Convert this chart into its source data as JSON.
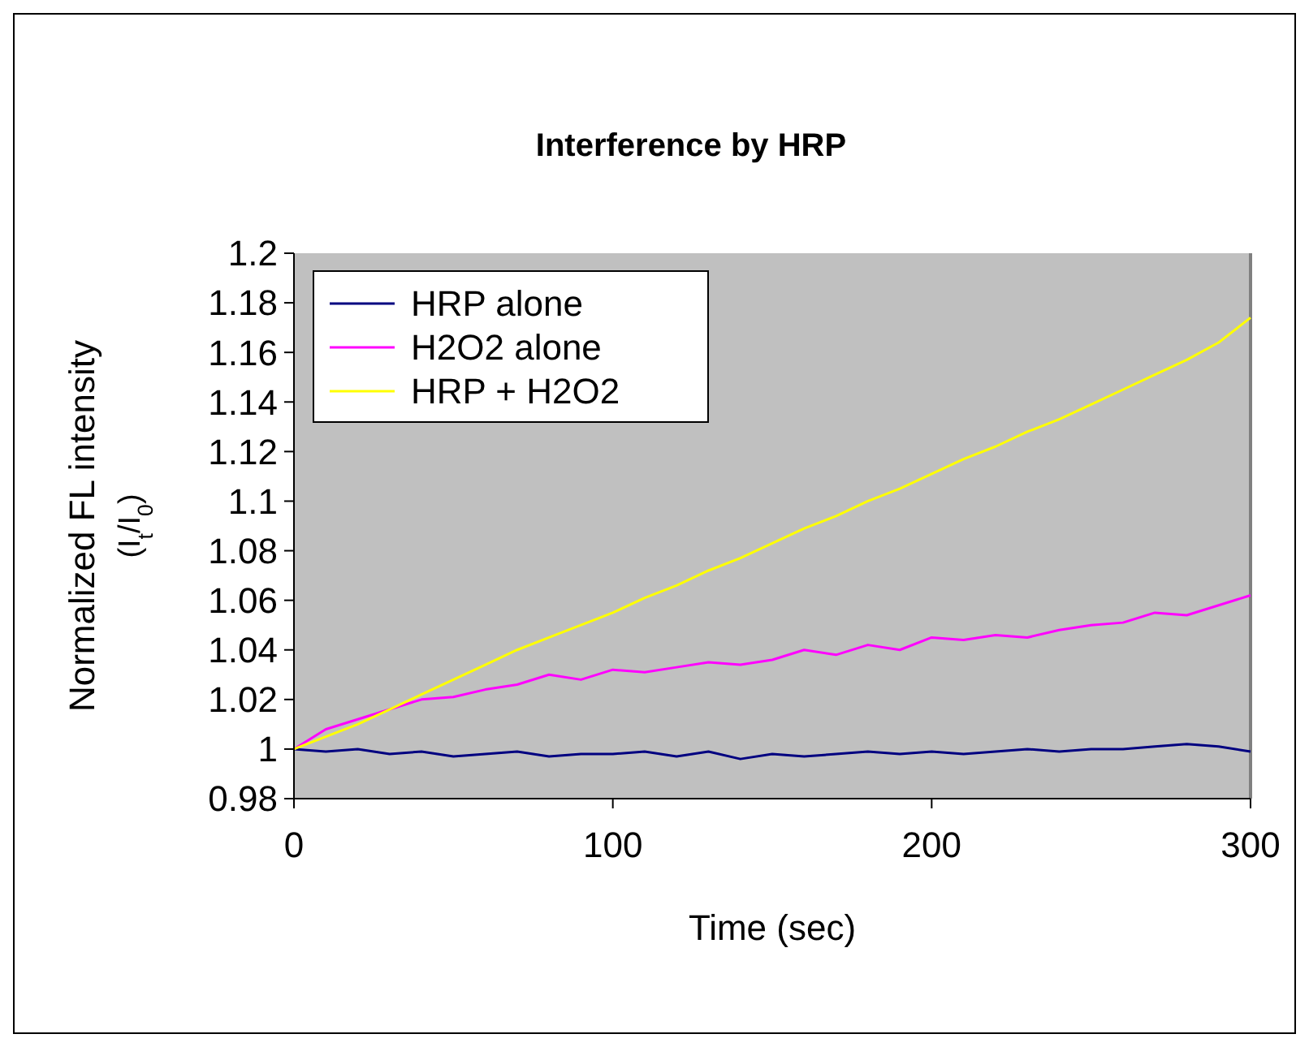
{
  "chart_data": {
    "type": "line",
    "title": "Interference by HRP",
    "xlabel": "Time (sec)",
    "ylabel": "Normalized FL intensity (I$_{t}$/I$_{0}$)",
    "x": [
      0,
      10,
      20,
      30,
      40,
      50,
      60,
      70,
      80,
      90,
      100,
      110,
      120,
      130,
      140,
      150,
      160,
      170,
      180,
      190,
      200,
      210,
      220,
      230,
      240,
      250,
      260,
      270,
      280,
      290,
      300
    ],
    "series": [
      {
        "name": "HRP alone",
        "color": "#000080",
        "values": [
          1.0,
          0.999,
          1.0,
          0.998,
          0.999,
          0.997,
          0.998,
          0.999,
          0.997,
          0.998,
          0.998,
          0.999,
          0.997,
          0.999,
          0.996,
          0.998,
          0.997,
          0.998,
          0.999,
          0.998,
          0.999,
          0.998,
          0.999,
          1.0,
          0.999,
          1.0,
          1.0,
          1.001,
          1.002,
          1.001,
          0.999
        ]
      },
      {
        "name": "H2O2 alone",
        "color": "#ff00ff",
        "values": [
          1.0,
          1.008,
          1.012,
          1.016,
          1.02,
          1.021,
          1.024,
          1.026,
          1.03,
          1.028,
          1.032,
          1.031,
          1.033,
          1.035,
          1.034,
          1.036,
          1.04,
          1.038,
          1.042,
          1.04,
          1.045,
          1.044,
          1.046,
          1.045,
          1.048,
          1.05,
          1.051,
          1.055,
          1.054,
          1.058,
          1.062
        ]
      },
      {
        "name": "HRP + H2O2",
        "color": "#ffff00",
        "values": [
          1.0,
          1.005,
          1.01,
          1.016,
          1.022,
          1.028,
          1.034,
          1.04,
          1.045,
          1.05,
          1.055,
          1.061,
          1.066,
          1.072,
          1.077,
          1.083,
          1.089,
          1.094,
          1.1,
          1.105,
          1.111,
          1.117,
          1.122,
          1.128,
          1.133,
          1.139,
          1.145,
          1.151,
          1.157,
          1.164,
          1.174
        ]
      }
    ],
    "xlim": [
      0,
      300
    ],
    "xticks": [
      0,
      100,
      200,
      300
    ],
    "ylim": [
      0.98,
      1.2
    ],
    "yticks": [
      0.98,
      1,
      1.02,
      1.04,
      1.06,
      1.08,
      1.1,
      1.12,
      1.14,
      1.16,
      1.18,
      1.2
    ],
    "grid": false,
    "legend": "top left",
    "marker": "none",
    "line_style": "solid"
  }
}
